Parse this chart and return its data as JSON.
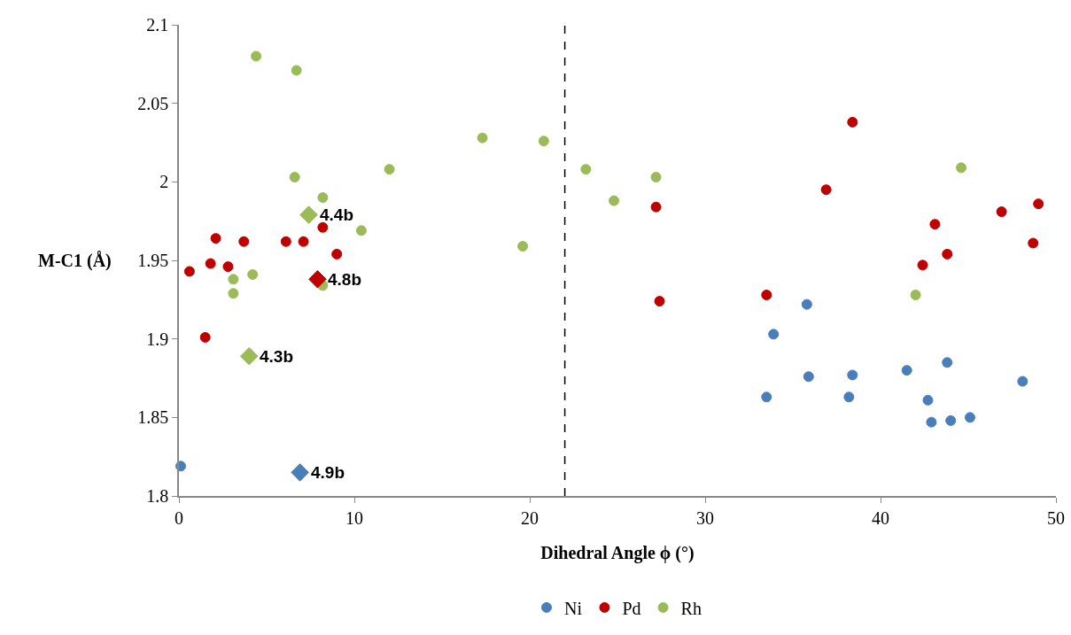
{
  "chart_data": {
    "type": "scatter",
    "xlabel": "Dihedral Angle ϕ (°)",
    "ylabel": "M-C1 (Å)",
    "xlim": [
      0,
      50
    ],
    "xticks": [
      0,
      10,
      20,
      30,
      40,
      50
    ],
    "ylim": [
      1.8,
      2.1
    ],
    "yticks": [
      1.8,
      1.85,
      1.9,
      1.95,
      2,
      2.05,
      2.1
    ],
    "grid": false,
    "legend": "bottom",
    "marker": "circle",
    "series": [
      {
        "name": "Ni",
        "color": "#4a7ebb",
        "x": [
          0.1,
          35.8,
          33.9,
          35.9,
          38.4,
          41.5,
          43.8,
          33.5,
          38.2,
          42.7,
          42.9,
          44.0,
          45.1,
          48.1
        ],
        "values": [
          1.819,
          1.922,
          1.903,
          1.876,
          1.877,
          1.88,
          1.885,
          1.863,
          1.863,
          1.861,
          1.847,
          1.848,
          1.85,
          1.873
        ]
      },
      {
        "name": "Pd",
        "color": "#c00000",
        "x": [
          0.6,
          1.5,
          1.8,
          2.1,
          2.8,
          3.7,
          6.1,
          7.1,
          8.2,
          9.0,
          27.4,
          27.2,
          33.5,
          36.9,
          38.4,
          42.4,
          43.1,
          43.8,
          46.9,
          48.7,
          49.0
        ],
        "values": [
          1.943,
          1.901,
          1.948,
          1.964,
          1.946,
          1.962,
          1.962,
          1.962,
          1.971,
          1.954,
          1.924,
          1.984,
          1.928,
          1.995,
          2.038,
          1.947,
          1.973,
          1.954,
          1.981,
          1.961,
          1.986
        ]
      },
      {
        "name": "Rh",
        "color": "#9bbb59",
        "x": [
          4.4,
          6.7,
          6.6,
          8.2,
          10.4,
          12.0,
          17.3,
          20.8,
          19.6,
          3.1,
          3.1,
          4.2,
          8.2,
          23.2,
          24.8,
          27.2,
          44.6,
          42.0
        ],
        "values": [
          2.08,
          2.071,
          2.003,
          1.99,
          1.969,
          2.008,
          2.028,
          2.026,
          1.959,
          1.938,
          1.929,
          1.941,
          1.934,
          2.008,
          1.988,
          2.003,
          2.009,
          1.928
        ]
      },
      {
        "color": "#4a7ebb",
        "marker": "diamond",
        "x": [
          6.9
        ],
        "values": [
          1.815
        ]
      },
      {
        "color": "#c00000",
        "marker": "diamond",
        "x": [
          7.9
        ],
        "values": [
          1.938
        ]
      },
      {
        "color": "#9bbb59",
        "marker": "diamond",
        "x": [
          7.4,
          4.0
        ],
        "values": [
          1.979,
          1.889
        ]
      }
    ],
    "annotations": [
      {
        "text": "4.4b",
        "x": 7.4,
        "y": 1.979
      },
      {
        "text": "4.8b",
        "x": 7.9,
        "y": 1.938
      },
      {
        "text": "4.3b",
        "x": 4.0,
        "y": 1.889
      },
      {
        "text": "4.9b",
        "x": 6.9,
        "y": 1.815
      }
    ],
    "ref_lines": [
      {
        "axis": "x",
        "value": 22,
        "color": "#000000",
        "line_style": "dashed"
      }
    ]
  }
}
